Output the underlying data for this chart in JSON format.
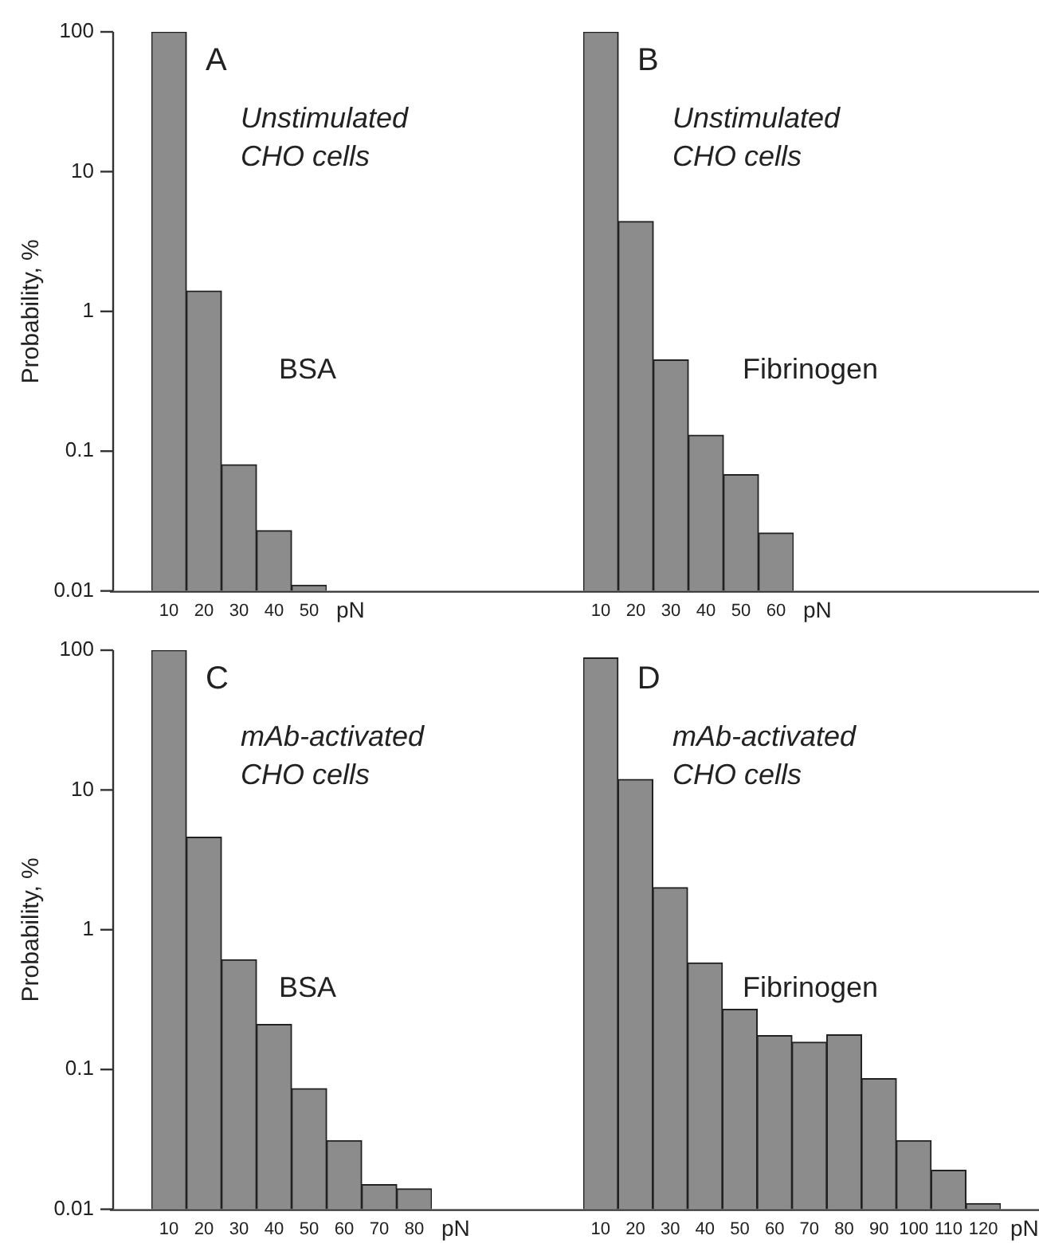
{
  "chart_data": [
    {
      "type": "bar",
      "categories": [
        "10",
        "20",
        "30",
        "40",
        "50"
      ],
      "values": [
        100,
        1.4,
        0.08,
        0.027,
        0.011
      ],
      "color": "#8c8c8c",
      "xlabel": "pN",
      "ylabel": "Probability, %",
      "log": "y",
      "ylim": [
        0.01,
        100
      ],
      "yticks": [
        0.01,
        0.1,
        1,
        10,
        100
      ],
      "annotations": [
        "A",
        "Unstimulated CHO cells",
        "BSA"
      ]
    },
    {
      "type": "bar",
      "categories": [
        "10",
        "20",
        "30",
        "40",
        "50",
        "60"
      ],
      "values": [
        100,
        4.4,
        0.45,
        0.13,
        0.068,
        0.026
      ],
      "color": "#8c8c8c",
      "xlabel": "pN",
      "log": "y",
      "ylim": [
        0.01,
        100
      ],
      "yticks": [
        0.01,
        0.1,
        1,
        10,
        100
      ],
      "tick_labels": "x",
      "annotations": [
        "B",
        "Unstimulated CHO cells",
        "Fibrinogen"
      ]
    },
    {
      "type": "bar",
      "categories": [
        "10",
        "20",
        "30",
        "40",
        "50",
        "60",
        "70",
        "80"
      ],
      "values": [
        100,
        4.6,
        0.61,
        0.21,
        0.073,
        0.031,
        0.015,
        0.014
      ],
      "color": "#8c8c8c",
      "xlabel": "pN",
      "ylabel": "Probability, %",
      "log": "y",
      "ylim": [
        0.01,
        100
      ],
      "yticks": [
        0.01,
        0.1,
        1,
        10,
        100
      ],
      "annotations": [
        "C",
        "mAb-activated CHO cells",
        "BSA"
      ]
    },
    {
      "type": "bar",
      "categories": [
        "10",
        "20",
        "30",
        "40",
        "50",
        "60",
        "70",
        "80",
        "90",
        "100",
        "110",
        "120"
      ],
      "values": [
        88,
        11.9,
        2.0,
        0.58,
        0.27,
        0.175,
        0.157,
        0.177,
        0.086,
        0.031,
        0.019,
        0.011
      ],
      "color": "#8c8c8c",
      "xlabel": "pN",
      "log": "y",
      "ylim": [
        0.01,
        100
      ],
      "yticks": [
        0.01,
        0.1,
        1,
        10,
        100
      ],
      "tick_labels": "x",
      "annotations": [
        "D",
        "mAb-activated CHO cells",
        "Fibrinogen"
      ]
    }
  ]
}
